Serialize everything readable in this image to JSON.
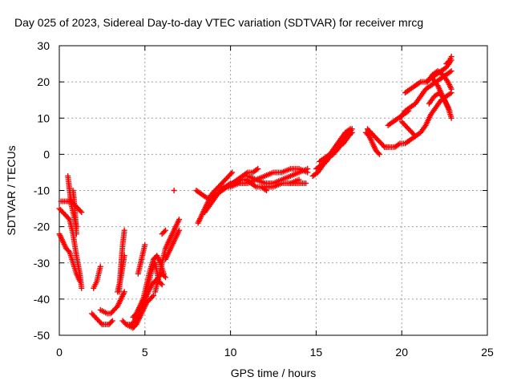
{
  "chart_data": {
    "type": "scatter",
    "title": "Day 025 of 2023, Sidereal Day-to-day VTEC variation (SDTVAR) for receiver mrcg",
    "xlabel": "GPS time / hours",
    "ylabel": "SDTVAR / TECUs",
    "xlim": [
      0,
      25
    ],
    "ylim": [
      -50,
      30
    ],
    "xticks": [
      0,
      5,
      10,
      15,
      20,
      25
    ],
    "yticks": [
      -50,
      -40,
      -30,
      -20,
      -10,
      0,
      10,
      20,
      30
    ],
    "grid": true,
    "marker": "+",
    "color": "#ff0000",
    "series": [
      {
        "x": [
          0.0,
          0.2,
          0.4,
          0.6,
          0.8,
          1.0,
          1.2,
          1.3
        ],
        "y": [
          -15,
          -16,
          -17,
          -18,
          -22,
          -28,
          -33,
          -37
        ]
      },
      {
        "x": [
          0.0,
          0.2,
          0.4,
          0.6,
          0.8,
          1.0,
          1.2
        ],
        "y": [
          -22,
          -24,
          -26,
          -27,
          -30,
          -33,
          -35
        ]
      },
      {
        "x": [
          0.1,
          0.3,
          0.5,
          0.7,
          0.9,
          1.1,
          1.3
        ],
        "y": [
          -13,
          -13,
          -13,
          -13,
          -14,
          -15,
          -16
        ]
      },
      {
        "x": [
          0.5,
          0.55,
          0.6,
          0.65,
          0.7,
          0.8,
          0.9,
          1.0
        ],
        "y": [
          -6,
          -8,
          -10,
          -12,
          -14,
          -16,
          -18,
          -20
        ]
      },
      {
        "x": [
          0.8,
          0.85,
          0.9,
          0.95,
          1.0
        ],
        "y": [
          -10,
          -12,
          -15,
          -18,
          -22
        ]
      },
      {
        "x": [
          1.9,
          2.1,
          2.3,
          2.5,
          2.7,
          2.9,
          3.1
        ],
        "y": [
          -44,
          -45,
          -46,
          -47,
          -47,
          -47,
          -46
        ]
      },
      {
        "x": [
          2.0,
          2.1,
          2.2,
          2.3,
          2.4
        ],
        "y": [
          -37,
          -36,
          -35,
          -33,
          -31
        ]
      },
      {
        "x": [
          2.4,
          2.6,
          2.8,
          3.0,
          3.2,
          3.4,
          3.6,
          3.8
        ],
        "y": [
          -43,
          -43.5,
          -44,
          -44,
          -43,
          -42,
          -40,
          -38
        ]
      },
      {
        "x": [
          3.4,
          3.5,
          3.6,
          3.7,
          3.8
        ],
        "y": [
          -38,
          -36,
          -34,
          -31,
          -28
        ]
      },
      {
        "x": [
          3.5,
          3.55,
          3.6,
          3.65,
          3.7,
          3.75,
          3.8
        ],
        "y": [
          -38,
          -34,
          -31,
          -28,
          -25,
          -23,
          -21
        ]
      },
      {
        "x": [
          3.7,
          3.9,
          4.1,
          4.3,
          4.5,
          4.7,
          4.9,
          5.1,
          5.3,
          5.5
        ],
        "y": [
          -46,
          -47,
          -47.5,
          -48,
          -47,
          -45,
          -43,
          -41,
          -40,
          -39
        ]
      },
      {
        "x": [
          4.0,
          4.2,
          4.4,
          4.6,
          4.8,
          5.0,
          5.2,
          5.4,
          5.6,
          5.8,
          6.0,
          6.2
        ],
        "y": [
          -47,
          -47,
          -46,
          -44,
          -42,
          -40,
          -38,
          -36,
          -35,
          -34,
          -33,
          -34
        ]
      },
      {
        "x": [
          4.3,
          4.5,
          4.7,
          4.9,
          5.1,
          5.3,
          5.5,
          5.7,
          5.9,
          6.1
        ],
        "y": [
          -45,
          -44,
          -42,
          -40,
          -36,
          -32,
          -29,
          -28,
          -30,
          -33
        ]
      },
      {
        "x": [
          4.8,
          5.0,
          5.2,
          5.4,
          5.6,
          5.8,
          6.0
        ],
        "y": [
          -43,
          -40,
          -36,
          -32,
          -30,
          -35,
          -36
        ]
      },
      {
        "x": [
          4.6,
          4.7,
          4.8,
          4.9,
          5.0
        ],
        "y": [
          -33,
          -31,
          -29,
          -27,
          -25
        ]
      },
      {
        "x": [
          5.6,
          5.8,
          6.0,
          6.2,
          6.4,
          6.6,
          6.8,
          7.0
        ],
        "y": [
          -38,
          -34,
          -30,
          -26,
          -24,
          -22,
          -20,
          -18
        ]
      },
      {
        "x": [
          6.2,
          6.4,
          6.6,
          6.8,
          7.0
        ],
        "y": [
          -29,
          -27,
          -25,
          -23,
          -21
        ]
      },
      {
        "x": [
          6.0,
          6.2
        ],
        "y": [
          -22,
          -21
        ]
      },
      {
        "x": [
          6.7
        ],
        "y": [
          -10
        ]
      },
      {
        "x": [
          8.1,
          8.3,
          8.5,
          8.7,
          8.9,
          9.1,
          9.3,
          9.5,
          9.7,
          9.9,
          10.1
        ],
        "y": [
          -19,
          -17,
          -15,
          -13,
          -11,
          -10,
          -9,
          -8,
          -7,
          -6,
          -5
        ]
      },
      {
        "x": [
          8.0,
          8.3,
          8.6,
          8.9,
          9.2,
          9.5,
          9.8,
          10.1,
          10.4,
          10.7,
          11.0,
          11.3,
          11.6
        ],
        "y": [
          -10,
          -11,
          -12,
          -12,
          -11,
          -10,
          -9,
          -8,
          -7,
          -6,
          -5,
          -5,
          -4
        ]
      },
      {
        "x": [
          8.5,
          8.8,
          9.1,
          9.4,
          9.7,
          10.0,
          10.3,
          10.6,
          10.9,
          11.2,
          11.5,
          11.8,
          12.1
        ],
        "y": [
          -16,
          -14,
          -12,
          -10,
          -9,
          -8,
          -8,
          -7,
          -7,
          -8,
          -9,
          -9,
          -10
        ]
      },
      {
        "x": [
          9.5,
          10.0,
          10.5,
          11.0,
          11.5,
          12.0,
          12.5,
          13.0,
          13.5,
          14.0,
          14.5
        ],
        "y": [
          -9,
          -9,
          -8,
          -8,
          -7,
          -8,
          -8,
          -7,
          -6,
          -5,
          -4
        ]
      },
      {
        "x": [
          11.0,
          11.5,
          12.0,
          12.5,
          13.0,
          13.5,
          14.0,
          14.5
        ],
        "y": [
          -6,
          -7,
          -6,
          -5,
          -5,
          -4,
          -4,
          -5
        ]
      },
      {
        "x": [
          12.0,
          12.5,
          13.0,
          13.5,
          14.0
        ],
        "y": [
          -9,
          -9,
          -8,
          -8,
          -7
        ]
      },
      {
        "x": [
          13.5,
          13.8,
          14.0,
          14.2,
          14.4
        ],
        "y": [
          -8,
          -8,
          -8,
          -8,
          -8
        ]
      },
      {
        "x": [
          14.8,
          15.1,
          15.4,
          15.7,
          16.0,
          16.3,
          16.6,
          16.9,
          17.1
        ],
        "y": [
          -6,
          -5,
          -3,
          -1,
          0,
          2,
          3,
          5,
          6
        ]
      },
      {
        "x": [
          15.0,
          15.3,
          15.6,
          15.9,
          16.2,
          16.5,
          16.8,
          17.1
        ],
        "y": [
          -4,
          -3,
          -2,
          0,
          1,
          3,
          5,
          7
        ]
      },
      {
        "x": [
          15.2,
          15.5,
          15.8,
          16.1,
          16.4,
          16.7,
          17.0
        ],
        "y": [
          -2,
          -1,
          0,
          2,
          4,
          6,
          7
        ]
      },
      {
        "x": [
          18.0,
          18.2,
          18.4,
          18.6,
          18.8,
          19.0,
          19.2
        ],
        "y": [
          7,
          6,
          5,
          4,
          3,
          2,
          2
        ]
      },
      {
        "x": [
          17.9,
          18.1,
          18.3,
          18.5,
          18.7
        ],
        "y": [
          6,
          5,
          3,
          1,
          0
        ]
      },
      {
        "x": [
          19.0,
          19.3,
          19.6,
          19.9,
          20.2,
          20.5,
          20.8,
          21.1,
          21.4,
          21.7,
          22.0,
          22.3,
          22.6,
          22.9
        ],
        "y": [
          2,
          2,
          2,
          3,
          3,
          4,
          5,
          6,
          8,
          11,
          13,
          15,
          16,
          17
        ]
      },
      {
        "x": [
          19.2,
          19.5,
          19.8,
          20.1,
          20.4
        ],
        "y": [
          8,
          9,
          10,
          11,
          12
        ]
      },
      {
        "x": [
          19.9,
          20.2,
          20.5,
          20.8,
          21.1,
          21.4,
          21.7,
          22.0,
          22.3,
          22.6,
          22.9
        ],
        "y": [
          10,
          12,
          13,
          14,
          16,
          18,
          19,
          20,
          21,
          22,
          23
        ]
      },
      {
        "x": [
          20.0,
          20.2,
          20.4,
          20.6,
          20.8
        ],
        "y": [
          9,
          8,
          7,
          6,
          5
        ]
      },
      {
        "x": [
          20.2,
          20.5,
          20.8,
          21.1,
          21.4,
          21.7,
          22.0,
          22.3,
          22.6,
          22.9
        ],
        "y": [
          17,
          18,
          19,
          20,
          20,
          21,
          22,
          23,
          24,
          26
        ]
      },
      {
        "x": [
          21.5,
          21.8,
          22.1,
          22.4,
          22.7,
          22.9
        ],
        "y": [
          20,
          22,
          23,
          22,
          20,
          18
        ]
      },
      {
        "x": [
          21.6,
          21.9,
          22.2,
          22.5,
          22.8
        ],
        "y": [
          14,
          16,
          17,
          15,
          12
        ]
      },
      {
        "x": [
          21.8,
          22.1,
          22.4,
          22.7,
          22.9
        ],
        "y": [
          21,
          19,
          16,
          13,
          10
        ]
      },
      {
        "x": [
          22.6,
          22.8,
          22.9
        ],
        "y": [
          25,
          26,
          27
        ]
      }
    ]
  }
}
